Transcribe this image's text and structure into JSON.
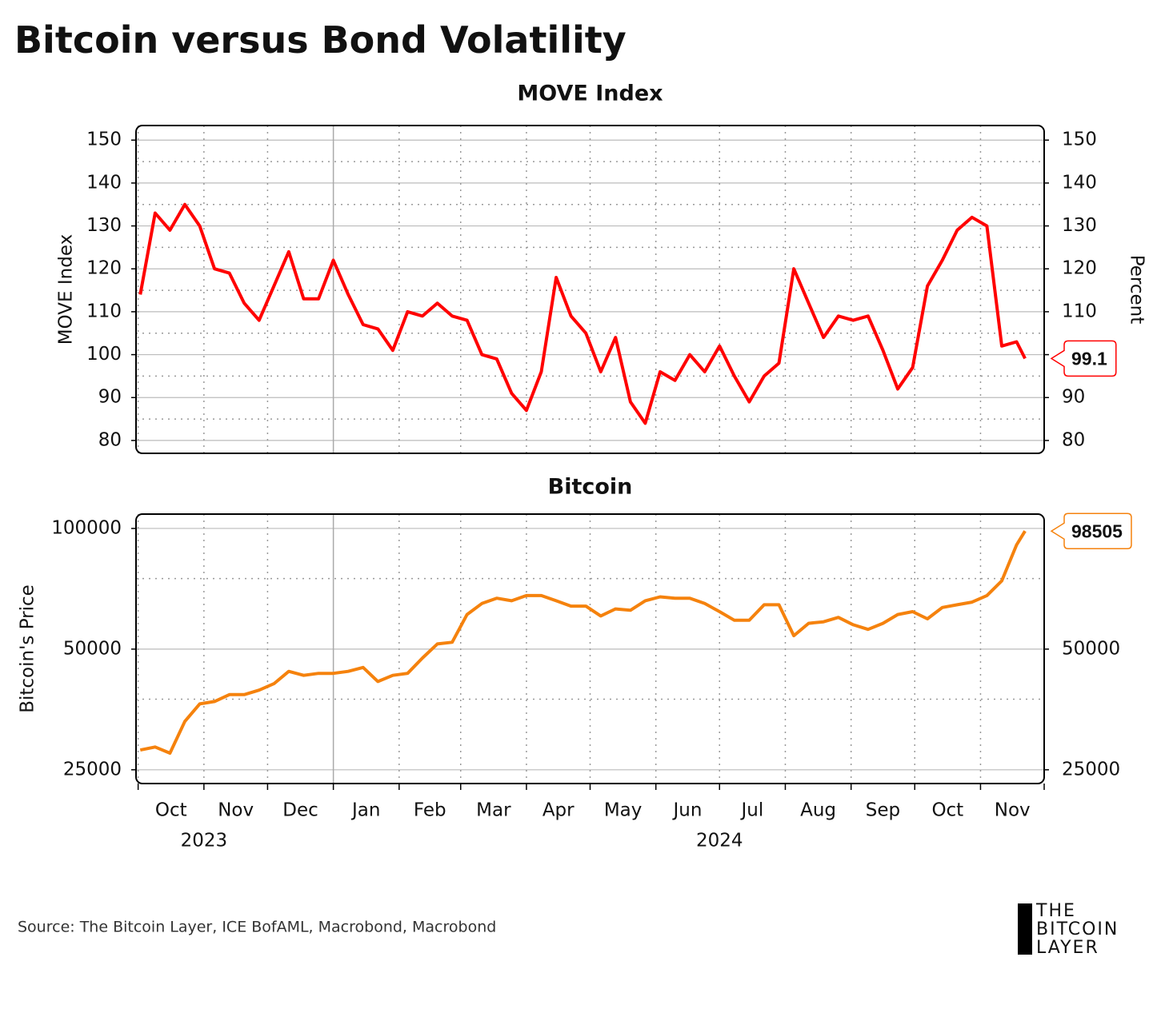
{
  "title": "Bitcoin versus Bond Volatility",
  "source": "Source: The Bitcoin Layer, ICE BofAML, Macrobond, Macrobond",
  "logo": [
    "THE",
    "BITCOIN",
    "LAYER"
  ],
  "chart_data": [
    {
      "type": "line",
      "title": "MOVE Index",
      "y_label": "MOVE Index",
      "y2_label": "Percent",
      "x": [
        "2023-10-02",
        "2023-10-09",
        "2023-10-16",
        "2023-10-23",
        "2023-10-30",
        "2023-11-06",
        "2023-11-13",
        "2023-11-20",
        "2023-11-27",
        "2023-12-04",
        "2023-12-11",
        "2023-12-18",
        "2023-12-25",
        "2024-01-01",
        "2024-01-08",
        "2024-01-15",
        "2024-01-22",
        "2024-01-29",
        "2024-02-05",
        "2024-02-12",
        "2024-02-19",
        "2024-02-26",
        "2024-03-04",
        "2024-03-11",
        "2024-03-18",
        "2024-03-25",
        "2024-04-01",
        "2024-04-08",
        "2024-04-15",
        "2024-04-22",
        "2024-04-29",
        "2024-05-06",
        "2024-05-13",
        "2024-05-20",
        "2024-05-27",
        "2024-06-03",
        "2024-06-10",
        "2024-06-17",
        "2024-06-24",
        "2024-07-01",
        "2024-07-08",
        "2024-07-15",
        "2024-07-22",
        "2024-07-29",
        "2024-08-05",
        "2024-08-12",
        "2024-08-19",
        "2024-08-26",
        "2024-09-02",
        "2024-09-09",
        "2024-09-16",
        "2024-09-23",
        "2024-09-30",
        "2024-10-07",
        "2024-10-14",
        "2024-10-21",
        "2024-10-28",
        "2024-11-04",
        "2024-11-11",
        "2024-11-18",
        "2024-11-22"
      ],
      "series": [
        {
          "color": "#ff0000",
          "values": [
            114,
            133,
            129,
            135,
            130,
            120,
            119,
            112,
            108,
            116,
            124,
            113,
            113,
            122,
            114,
            107,
            106,
            101,
            110,
            109,
            112,
            109,
            108,
            100,
            99,
            91,
            87,
            96,
            118,
            109,
            105,
            96,
            104,
            89,
            84,
            96,
            94,
            100,
            96,
            102,
            95,
            89,
            95,
            98,
            120,
            112,
            104,
            109,
            108,
            109,
            101,
            92,
            97,
            116,
            122,
            129,
            132,
            130,
            102,
            103,
            99.1
          ]
        }
      ],
      "xlim": [
        "2023-09-30",
        "2024-12-01"
      ],
      "ylim": [
        77,
        153.4
      ],
      "yticks": [
        80,
        90,
        100,
        110,
        120,
        130,
        140,
        150
      ],
      "yminorticks": [
        85,
        95,
        105,
        115,
        125,
        135,
        145
      ],
      "y2lim": [
        77,
        153.4
      ],
      "y2ticks": [
        80,
        90,
        100,
        110,
        120,
        130,
        140,
        150
      ],
      "grid": true
    },
    {
      "type": "line",
      "title": "Bitcoin",
      "y_label": "Bitcoin's Price",
      "log_scale": true,
      "x": [
        "2023-10-02",
        "2023-10-09",
        "2023-10-16",
        "2023-10-23",
        "2023-10-30",
        "2023-11-06",
        "2023-11-13",
        "2023-11-20",
        "2023-11-27",
        "2023-12-04",
        "2023-12-11",
        "2023-12-18",
        "2023-12-25",
        "2024-01-01",
        "2024-01-08",
        "2024-01-15",
        "2024-01-22",
        "2024-01-29",
        "2024-02-05",
        "2024-02-12",
        "2024-02-19",
        "2024-02-26",
        "2024-03-04",
        "2024-03-11",
        "2024-03-18",
        "2024-03-25",
        "2024-04-01",
        "2024-04-08",
        "2024-04-15",
        "2024-04-22",
        "2024-04-29",
        "2024-05-06",
        "2024-05-13",
        "2024-05-20",
        "2024-05-27",
        "2024-06-03",
        "2024-06-10",
        "2024-06-17",
        "2024-06-24",
        "2024-07-01",
        "2024-07-08",
        "2024-07-15",
        "2024-07-22",
        "2024-07-29",
        "2024-08-05",
        "2024-08-12",
        "2024-08-19",
        "2024-08-26",
        "2024-09-02",
        "2024-09-09",
        "2024-09-16",
        "2024-09-23",
        "2024-09-30",
        "2024-10-07",
        "2024-10-14",
        "2024-10-21",
        "2024-10-28",
        "2024-11-04",
        "2024-11-11",
        "2024-11-18",
        "2024-11-22"
      ],
      "series": [
        {
          "color": "#f5820d",
          "values": [
            28000,
            28500,
            27500,
            33000,
            36500,
            37000,
            38500,
            38500,
            39500,
            41000,
            44000,
            43000,
            43500,
            43500,
            44000,
            45000,
            41500,
            43000,
            43500,
            47500,
            51500,
            52000,
            61000,
            65000,
            67000,
            66000,
            68000,
            68000,
            66000,
            64000,
            64000,
            60500,
            63000,
            62500,
            66000,
            67500,
            67000,
            67000,
            65000,
            62000,
            59000,
            59000,
            64500,
            64500,
            54000,
            58000,
            58500,
            60000,
            57500,
            56000,
            58000,
            61000,
            62000,
            59500,
            63500,
            64500,
            65500,
            68000,
            74000,
            91000,
            98505
          ]
        }
      ],
      "xlim": [
        "2023-09-30",
        "2024-12-01"
      ],
      "xticks": [
        {
          "value": "2023-10",
          "label": "Oct"
        },
        {
          "value": "2023-11",
          "label": "Nov"
        },
        {
          "value": "2023-12",
          "label": "Dec"
        },
        {
          "value": "2024-01",
          "label": "Jan"
        },
        {
          "value": "2024-02",
          "label": "Feb"
        },
        {
          "value": "2024-03",
          "label": "Mar"
        },
        {
          "value": "2024-04",
          "label": "Apr"
        },
        {
          "value": "2024-05",
          "label": "May"
        },
        {
          "value": "2024-06",
          "label": "Jun"
        },
        {
          "value": "2024-07",
          "label": "Jul"
        },
        {
          "value": "2024-08",
          "label": "Aug"
        },
        {
          "value": "2024-09",
          "label": "Sep"
        },
        {
          "value": "2024-10",
          "label": "Oct"
        },
        {
          "value": "2024-11",
          "label": "Nov"
        }
      ],
      "xyearticks": [
        {
          "value": "2023-11",
          "label": "2023"
        },
        {
          "value": "2024-07",
          "label": "2024"
        }
      ],
      "ylim": [
        23100,
        108600
      ],
      "yticks": [
        25000,
        50000,
        100000
      ],
      "yminorticks": [
        37500,
        75000
      ],
      "y2lim": [
        23100,
        108600
      ],
      "y2ticks": [
        25000,
        50000
      ],
      "grid": true
    }
  ]
}
